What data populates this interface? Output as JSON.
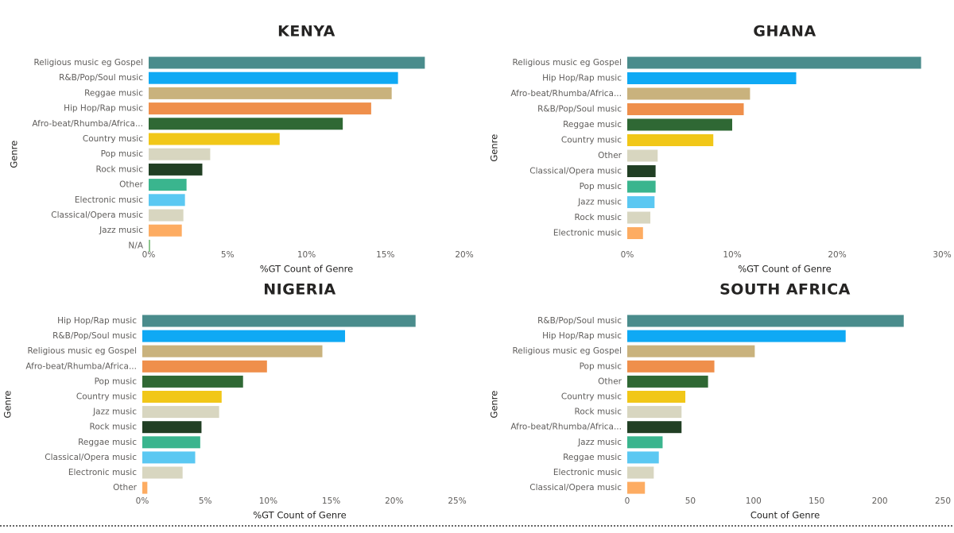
{
  "chart_data": [
    {
      "type": "bar",
      "orientation": "horizontal",
      "title": "KENYA",
      "x_label": "%GT Count of Genre",
      "y_label": "Genre",
      "categories": [
        "Religious music eg Gospel",
        "R&B/Pop/Soul music",
        "Reggae music",
        "Hip Hop/Rap music",
        "Afro-beat/Rhumba/Africa...",
        "Country music",
        "Pop music",
        "Rock music",
        "Other",
        "Electronic music",
        "Classical/Opera music",
        "Jazz music",
        "N/A"
      ],
      "values": [
        17.5,
        15.8,
        15.4,
        14.1,
        12.3,
        8.3,
        3.9,
        3.4,
        2.4,
        2.3,
        2.2,
        2.1,
        0.1
      ],
      "colors": [
        "#4a8c8c",
        "#0fa9f4",
        "#c9b27d",
        "#ef8f4b",
        "#2f6834",
        "#f1c718",
        "#d8d6c0",
        "#213f24",
        "#3ab58e",
        "#5bc8f2",
        "#d8d6c0",
        "#fdac62",
        "#8cc68c"
      ],
      "xlim": [
        0,
        20
      ],
      "xticks": [
        {
          "value": 0,
          "label": "0%"
        },
        {
          "value": 5,
          "label": "5%"
        },
        {
          "value": 10,
          "label": "10%"
        },
        {
          "value": 15,
          "label": "15%"
        },
        {
          "value": 20,
          "label": "20%"
        }
      ],
      "grid": false
    },
    {
      "type": "bar",
      "orientation": "horizontal",
      "title": "GHANA",
      "x_label": "%GT Count of Genre",
      "y_label": "Genre",
      "categories": [
        "Religious music eg Gospel",
        "Hip Hop/Rap music",
        "Afro-beat/Rhumba/Africa...",
        "R&B/Pop/Soul music",
        "Reggae music",
        "Country music",
        "Other",
        "Classical/Opera music",
        "Pop music",
        "Jazz music",
        "Rock music",
        "Electronic music"
      ],
      "values": [
        28.0,
        16.1,
        11.7,
        11.1,
        10.0,
        8.2,
        2.9,
        2.7,
        2.7,
        2.6,
        2.2,
        1.5
      ],
      "colors": [
        "#4a8c8c",
        "#0fa9f4",
        "#c9b27d",
        "#ef8f4b",
        "#2f6834",
        "#f1c718",
        "#d8d6c0",
        "#213f24",
        "#3ab58e",
        "#5bc8f2",
        "#d8d6c0",
        "#fdac62"
      ],
      "xlim": [
        0,
        30
      ],
      "xticks": [
        {
          "value": 0,
          "label": "0%"
        },
        {
          "value": 10,
          "label": "10%"
        },
        {
          "value": 20,
          "label": "20%"
        },
        {
          "value": 30,
          "label": "30%"
        }
      ],
      "grid": false
    },
    {
      "type": "bar",
      "orientation": "horizontal",
      "title": "NIGERIA",
      "x_label": "%GT Count of Genre",
      "y_label": "Genre",
      "categories": [
        "Hip Hop/Rap music",
        "R&B/Pop/Soul music",
        "Religious music eg Gospel",
        "Afro-beat/Rhumba/Africa...",
        "Pop music",
        "Country music",
        "Jazz music",
        "Rock music",
        "Reggae music",
        "Classical/Opera music",
        "Electronic music",
        "Other"
      ],
      "values": [
        21.7,
        16.1,
        14.3,
        9.9,
        8.0,
        6.3,
        6.1,
        4.7,
        4.6,
        4.2,
        3.2,
        0.4
      ],
      "colors": [
        "#4a8c8c",
        "#0fa9f4",
        "#c9b27d",
        "#ef8f4b",
        "#2f6834",
        "#f1c718",
        "#d8d6c0",
        "#213f24",
        "#3ab58e",
        "#5bc8f2",
        "#d8d6c0",
        "#fdac62"
      ],
      "xlim": [
        0,
        25
      ],
      "xticks": [
        {
          "value": 0,
          "label": "0%"
        },
        {
          "value": 5,
          "label": "5%"
        },
        {
          "value": 10,
          "label": "10%"
        },
        {
          "value": 15,
          "label": "15%"
        },
        {
          "value": 20,
          "label": "20%"
        },
        {
          "value": 25,
          "label": "25%"
        }
      ],
      "grid": false
    },
    {
      "type": "bar",
      "orientation": "horizontal",
      "title": "SOUTH AFRICA",
      "x_label": "Count of Genre",
      "y_label": "Genre",
      "categories": [
        "R&B/Pop/Soul music",
        "Hip Hop/Rap music",
        "Religious music eg Gospel",
        "Pop music",
        "Other",
        "Country music",
        "Rock music",
        "Afro-beat/Rhumba/Africa...",
        "Jazz music",
        "Reggae music",
        "Electronic music",
        "Classical/Opera music"
      ],
      "values": [
        219,
        173,
        101,
        69,
        64,
        46,
        43,
        43,
        28,
        25,
        21,
        14
      ],
      "colors": [
        "#4a8c8c",
        "#0fa9f4",
        "#c9b27d",
        "#ef8f4b",
        "#2f6834",
        "#f1c718",
        "#d8d6c0",
        "#213f24",
        "#3ab58e",
        "#5bc8f2",
        "#d8d6c0",
        "#fdac62"
      ],
      "xlim": [
        0,
        250
      ],
      "xticks": [
        0,
        50,
        100,
        150,
        200,
        250
      ],
      "grid": false
    }
  ]
}
